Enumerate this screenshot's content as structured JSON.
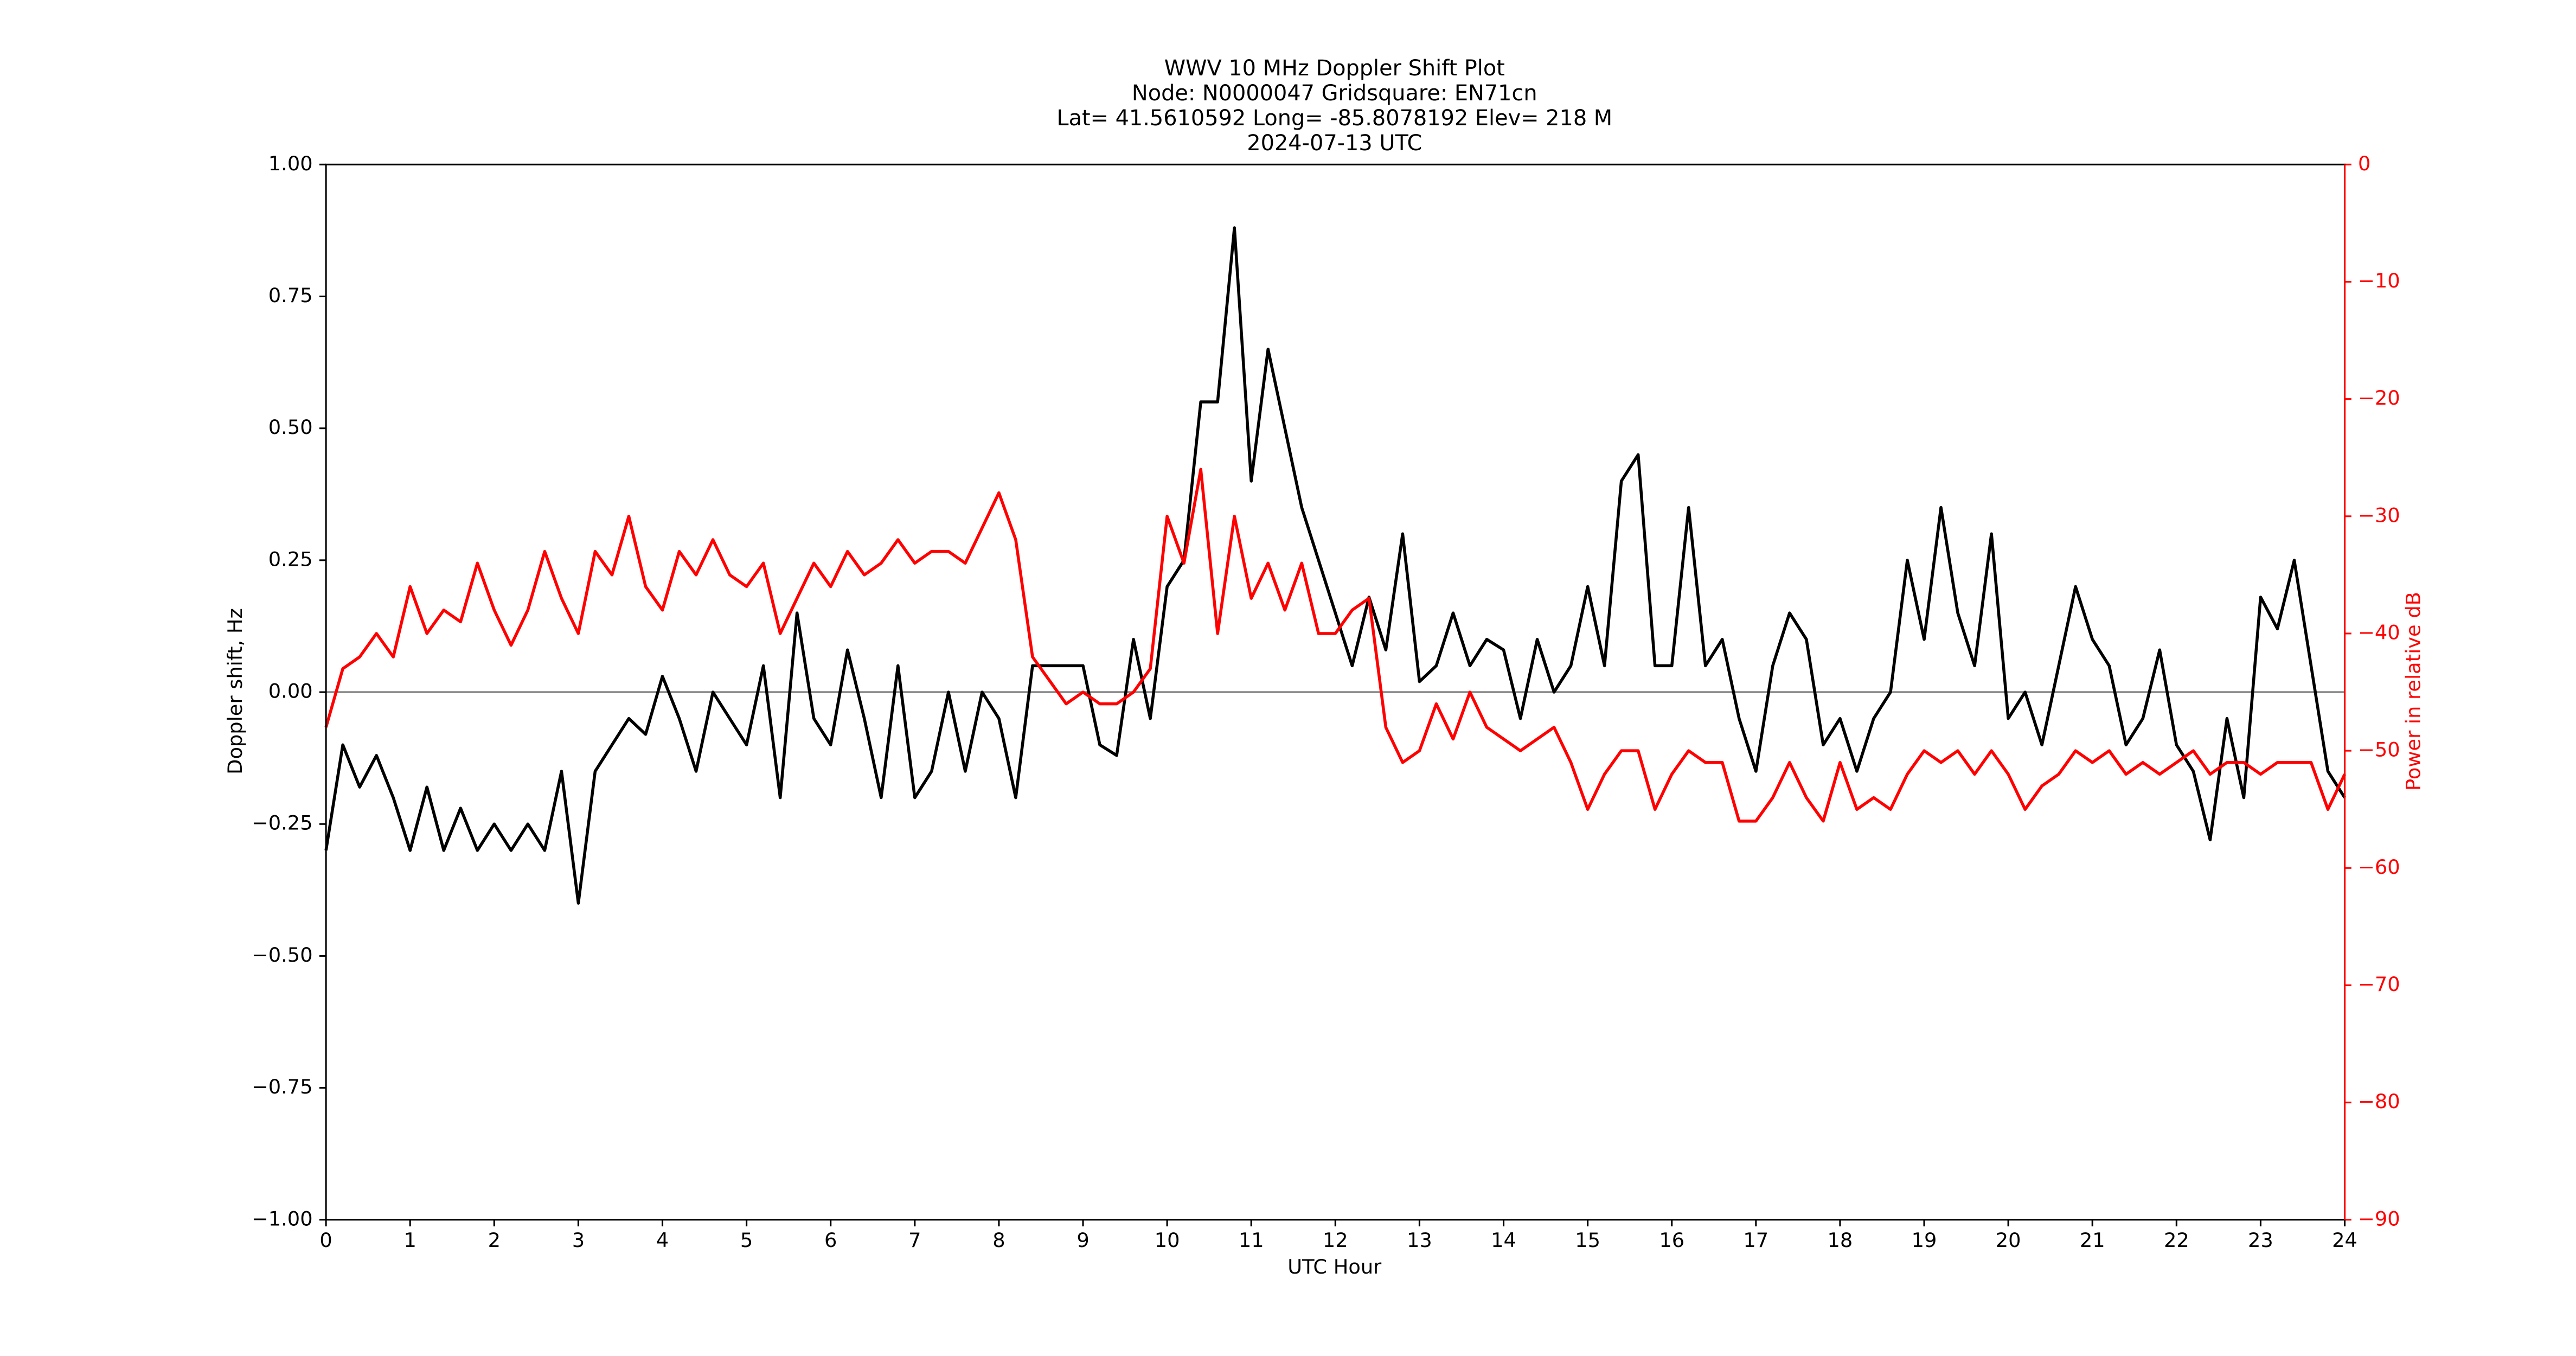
{
  "chart_data": {
    "type": "line",
    "title_lines": [
      "WWV 10 MHz Doppler Shift Plot",
      "Node:  N0000047     Gridsquare:  EN71cn",
      "Lat= 41.5610592    Long= -85.8078192    Elev= 218 M",
      "2024-07-13  UTC"
    ],
    "xlabel": "UTC Hour",
    "ylabel": "Doppler shift, Hz",
    "y2label": "Power in relative dB",
    "xlim": [
      0,
      24
    ],
    "xticks": [
      0,
      1,
      2,
      3,
      4,
      5,
      6,
      7,
      8,
      9,
      10,
      11,
      12,
      13,
      14,
      15,
      16,
      17,
      18,
      19,
      20,
      21,
      22,
      23,
      24
    ],
    "ylim": [
      -1,
      1
    ],
    "yticks": [
      {
        "value": -1,
        "label": "−1.00"
      },
      {
        "value": -0.75,
        "label": "−0.75"
      },
      {
        "value": -0.5,
        "label": "−0.50"
      },
      {
        "value": -0.25,
        "label": "−0.25"
      },
      {
        "value": 0,
        "label": "0.00"
      },
      {
        "value": 0.25,
        "label": "0.25"
      },
      {
        "value": 0.5,
        "label": "0.50"
      },
      {
        "value": 0.75,
        "label": "0.75"
      },
      {
        "value": 1,
        "label": "1.00"
      }
    ],
    "y2lim": [
      -90,
      0
    ],
    "y2ticks": [
      {
        "value": -90,
        "label": "−90"
      },
      {
        "value": -80,
        "label": "−80"
      },
      {
        "value": -70,
        "label": "−70"
      },
      {
        "value": -60,
        "label": "−60"
      },
      {
        "value": -50,
        "label": "−50"
      },
      {
        "value": -40,
        "label": "−40"
      },
      {
        "value": -30,
        "label": "−30"
      },
      {
        "value": -20,
        "label": "−20"
      },
      {
        "value": -10,
        "label": "−10"
      },
      0
    ],
    "y2_color": "#ff0000",
    "zero_line": true,
    "x": [
      0,
      0.2,
      0.4,
      0.6,
      0.8,
      1,
      1.2,
      1.4,
      1.6,
      1.8,
      2,
      2.2,
      2.4,
      2.6,
      2.8,
      3,
      3.2,
      3.4,
      3.6,
      3.8,
      4,
      4.2,
      4.4,
      4.6,
      4.8,
      5,
      5.2,
      5.4,
      5.6,
      5.8,
      6,
      6.2,
      6.4,
      6.6,
      6.8,
      7,
      7.2,
      7.4,
      7.6,
      7.8,
      8,
      8.2,
      8.4,
      8.6,
      8.8,
      9,
      9.2,
      9.4,
      9.6,
      9.8,
      10,
      10.2,
      10.4,
      10.6,
      10.8,
      11,
      11.2,
      11.4,
      11.6,
      11.8,
      12,
      12.2,
      12.4,
      12.6,
      12.8,
      13,
      13.2,
      13.4,
      13.6,
      13.8,
      14,
      14.2,
      14.4,
      14.6,
      14.8,
      15,
      15.2,
      15.4,
      15.6,
      15.8,
      16,
      16.2,
      16.4,
      16.6,
      16.8,
      17,
      17.2,
      17.4,
      17.6,
      17.8,
      18,
      18.2,
      18.4,
      18.6,
      18.8,
      19,
      19.2,
      19.4,
      19.6,
      19.8,
      20,
      20.2,
      20.4,
      20.6,
      20.8,
      21,
      21.2,
      21.4,
      21.6,
      21.8,
      22,
      22.2,
      22.4,
      22.6,
      22.8,
      23,
      23.2,
      23.4,
      23.6,
      23.8,
      24
    ],
    "series": [
      {
        "color": "#000000",
        "values": [
          -0.3,
          -0.1,
          -0.18,
          -0.12,
          -0.2,
          -0.3,
          -0.18,
          -0.3,
          -0.22,
          -0.3,
          -0.25,
          -0.3,
          -0.25,
          -0.3,
          -0.15,
          -0.4,
          -0.15,
          -0.1,
          -0.05,
          -0.08,
          0.03,
          -0.05,
          -0.15,
          0,
          -0.05,
          -0.1,
          0.05,
          -0.2,
          0.15,
          -0.05,
          -0.1,
          0.08,
          -0.05,
          -0.2,
          0.05,
          -0.2,
          -0.15,
          0,
          -0.15,
          0,
          -0.05,
          -0.2,
          0.05,
          0.05,
          0.05,
          0.05,
          -0.1,
          -0.12,
          0.1,
          -0.05,
          0.2,
          0.25,
          0.55,
          0.55,
          0.88,
          0.4,
          0.65,
          0.5,
          0.35,
          0.25,
          0.15,
          0.05,
          0.18,
          0.08,
          0.3,
          0.02,
          0.05,
          0.15,
          0.05,
          0.1,
          0.08,
          -0.05,
          0.1,
          0,
          0.05,
          0.2,
          0.05,
          0.4,
          0.45,
          0.05,
          0.05,
          0.35,
          0.05,
          0.1,
          -0.05,
          -0.15,
          0.05,
          0.15,
          0.1,
          -0.1,
          -0.05,
          -0.15,
          -0.05,
          0,
          0.25,
          0.1,
          0.35,
          0.15,
          0.05,
          0.3,
          -0.05,
          0,
          -0.1,
          0.05,
          0.2,
          0.1,
          0.05,
          -0.1,
          -0.05,
          0.08,
          -0.1,
          -0.15,
          -0.28,
          -0.05,
          -0.2,
          0.18,
          0.12,
          0.25,
          0.05,
          -0.15,
          -0.2
        ]
      },
      {
        "color": "#ff0000",
        "axis": "y2",
        "values": [
          -48,
          -43,
          -42,
          -40,
          -42,
          -36,
          -40,
          -38,
          -39,
          -34,
          -38,
          -41,
          -38,
          -33,
          -37,
          -40,
          -33,
          -35,
          -30,
          -36,
          -38,
          -33,
          -35,
          -32,
          -35,
          -36,
          -34,
          -40,
          -37,
          -34,
          -36,
          -33,
          -35,
          -34,
          -32,
          -34,
          -33,
          -33,
          -34,
          -31,
          -28,
          -32,
          -42,
          -44,
          -46,
          -45,
          -46,
          -46,
          -45,
          -43,
          -30,
          -34,
          -26,
          -40,
          -30,
          -37,
          -34,
          -38,
          -34,
          -40,
          -40,
          -38,
          -37,
          -48,
          -51,
          -50,
          -46,
          -49,
          -45,
          -48,
          -49,
          -50,
          -49,
          -48,
          -51,
          -55,
          -52,
          -50,
          -50,
          -55,
          -52,
          -50,
          -51,
          -51,
          -56,
          -56,
          -54,
          -51,
          -54,
          -56,
          -51,
          -55,
          -54,
          -55,
          -52,
          -50,
          -51,
          -50,
          -52,
          -50,
          -52,
          -55,
          -53,
          -52,
          -50,
          -51,
          -50,
          -52,
          -51,
          -52,
          -51,
          -50,
          -52,
          -51,
          -51,
          -52,
          -51,
          -51,
          -51,
          -55,
          -52
        ]
      }
    ]
  }
}
